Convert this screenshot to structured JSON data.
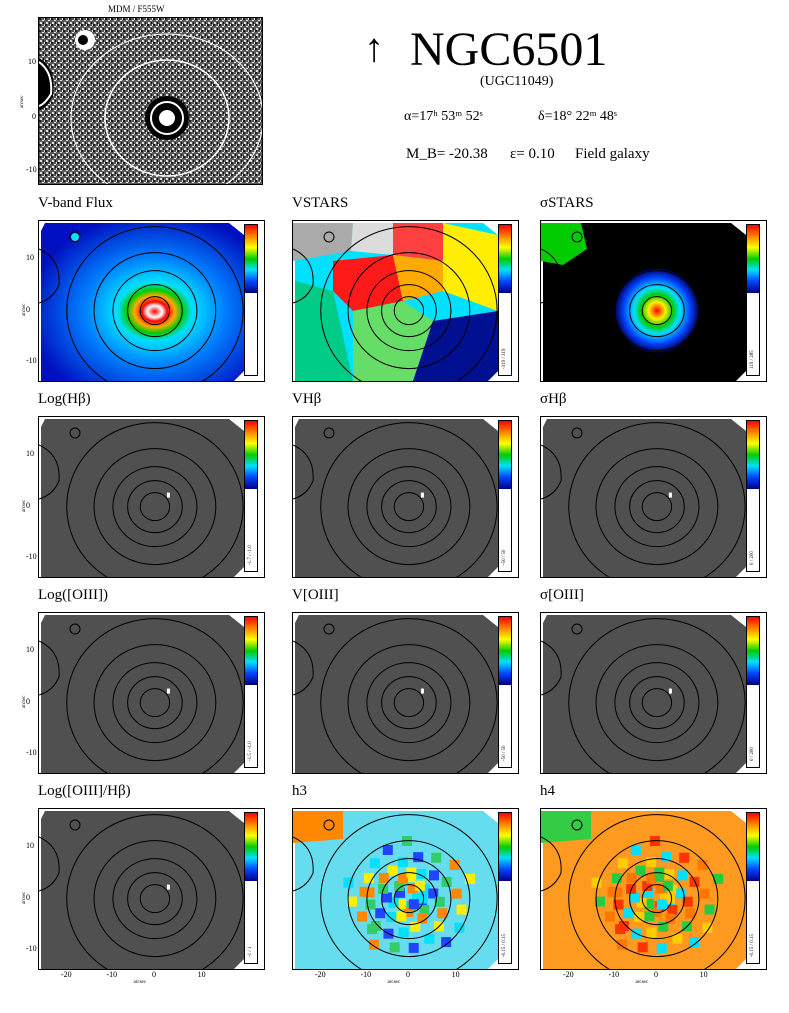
{
  "header": {
    "arrow": "↑",
    "galaxy_name": "NGC6501",
    "catalog_id": "(UGC11049)",
    "ra": "α=17ʰ 53ᵐ 52ˢ",
    "dec": "δ=18° 22ᵐ 48ˢ",
    "mag": "M_B= -20.38",
    "ellipticity": "ε= 0.10",
    "environment": "Field galaxy"
  },
  "image_panel": {
    "label": "MDM / F555W",
    "y_ticks": [
      "10",
      "0",
      "-10"
    ],
    "y_label": "arcsec"
  },
  "axis": {
    "label": "arcsec",
    "x_ticks": [
      "-20",
      "-10",
      "0",
      "10"
    ],
    "y_ticks": [
      "10",
      "0",
      "-10"
    ]
  },
  "panels": [
    {
      "title": "V-band Flux",
      "cbar": "",
      "style": "flux"
    },
    {
      "title": "VSTARS",
      "cbar": "-319 / 319",
      "style": "vel"
    },
    {
      "title": "σSTARS",
      "cbar": "119 / 285",
      "style": "sig"
    },
    {
      "title": "Log(Hβ)",
      "cbar": "-1.7 / -1.0",
      "style": "grey"
    },
    {
      "title": "VHβ",
      "cbar": "-50 / 50",
      "style": "grey"
    },
    {
      "title": "σHβ",
      "cbar": "0 / 200",
      "style": "grey"
    },
    {
      "title": "Log([OIII])",
      "cbar": "-1.5 / -1.0",
      "style": "grey"
    },
    {
      "title": "V[OIII]",
      "cbar": "-50 / 50",
      "style": "grey"
    },
    {
      "title": "σ[OIII]",
      "cbar": "0 / 200",
      "style": "grey"
    },
    {
      "title": "Log([OIII]/Hβ)",
      "cbar": "-1 / 1",
      "style": "grey"
    },
    {
      "title": "h3",
      "cbar": "-0.15 / 0.15",
      "style": "h3"
    },
    {
      "title": "h4",
      "cbar": "-0.15 / 0.15",
      "style": "h4"
    }
  ]
}
